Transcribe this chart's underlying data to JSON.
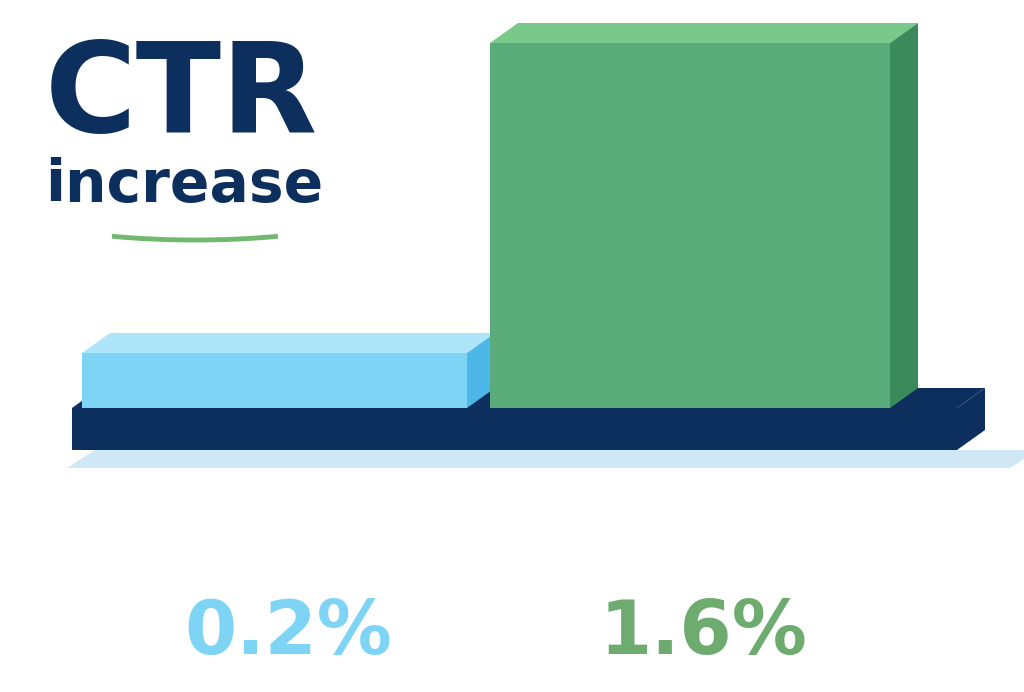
{
  "background_color": "#ffffff",
  "title_ctr": "CTR",
  "title_increase": "increase",
  "underline_color": "#72b870",
  "bar1_label": "0.2%",
  "bar2_label": "1.6%",
  "bar1_label_color": "#7dd4f5",
  "bar2_label_color": "#6dab6e",
  "bar1_front_color": "#7dd4f5",
  "bar1_top_color": "#aee5fa",
  "bar1_side_color": "#4db8e8",
  "bar2_front_color": "#5aac7a",
  "bar2_top_color": "#78c98a",
  "bar2_side_color": "#3a8a5c",
  "platform_color": "#0d2f5e",
  "platform_shadow_color": "#d0e8f5",
  "title_ctr_color": "#0d2f5e",
  "title_increase_color": "#0d2f5e",
  "label_fontsize": 54,
  "title_ctr_fontsize": 90,
  "title_increase_fontsize": 42,
  "fig_w": 10.24,
  "fig_h": 6.92,
  "dpi": 100
}
